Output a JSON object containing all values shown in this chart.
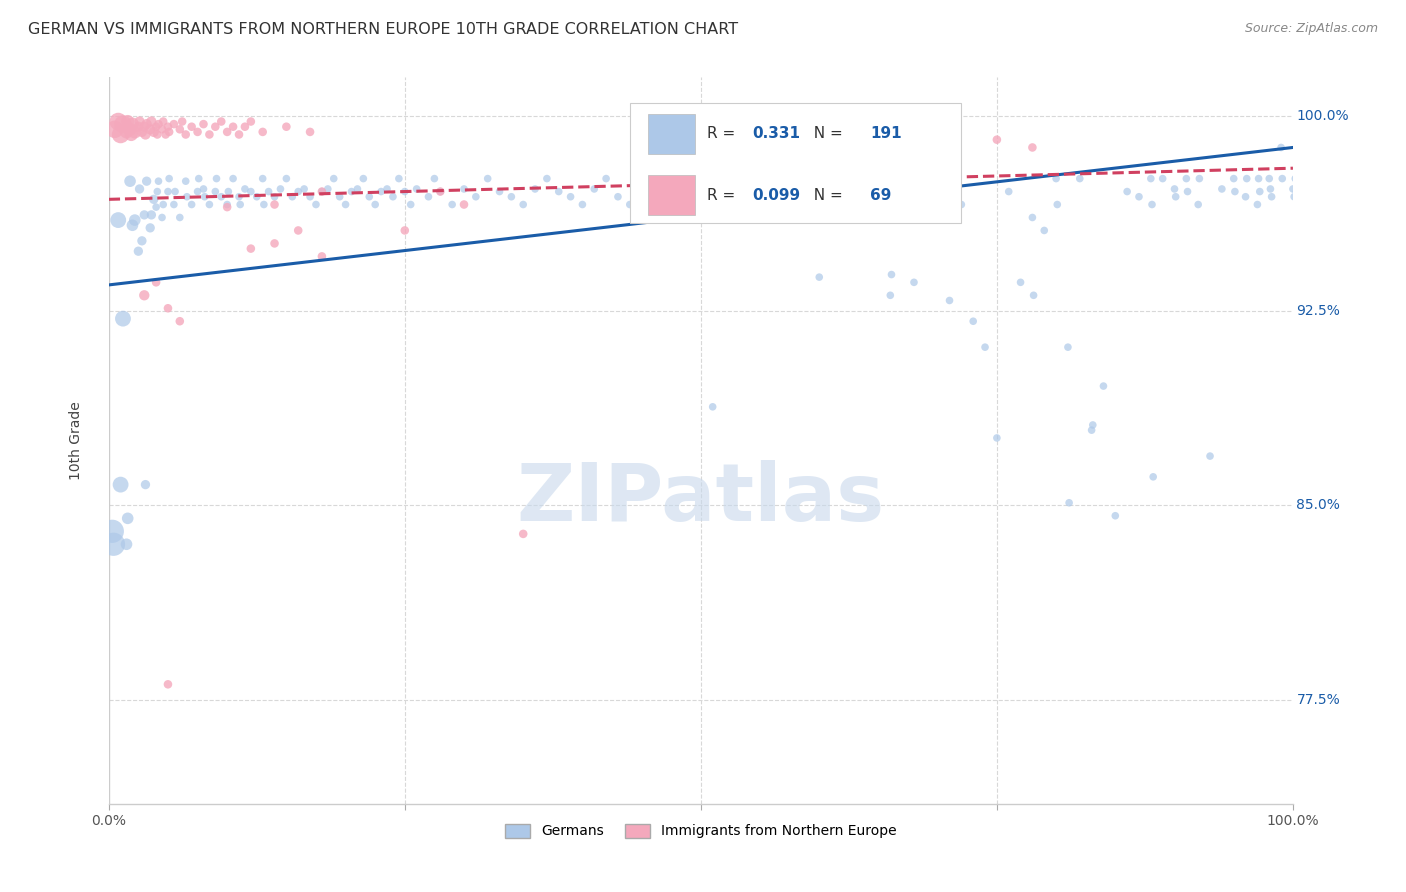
{
  "title": "GERMAN VS IMMIGRANTS FROM NORTHERN EUROPE 10TH GRADE CORRELATION CHART",
  "source": "Source: ZipAtlas.com",
  "ylabel": "10th Grade",
  "yticks": [
    0.775,
    0.85,
    0.925,
    1.0
  ],
  "ytick_labels": [
    "77.5%",
    "85.0%",
    "92.5%",
    "100.0%"
  ],
  "xlim": [
    0.0,
    1.0
  ],
  "ylim": [
    0.735,
    1.015
  ],
  "blue_R": "0.331",
  "blue_N": "191",
  "pink_R": "0.099",
  "pink_N": "69",
  "blue_color": "#adc8e8",
  "pink_color": "#f4a8bc",
  "blue_line_color": "#1a5ca8",
  "pink_line_color": "#d04060",
  "legend_label_blue": "Germans",
  "legend_label_pink": "Immigrants from Northern Europe",
  "background_color": "#ffffff",
  "grid_color": "#d8d8d8",
  "title_fontsize": 11.5,
  "source_fontsize": 9,
  "axis_label_fontsize": 10,
  "tick_fontsize": 10,
  "legend_fontsize": 11,
  "blue_line_start_x": 0.0,
  "blue_line_start_y": 0.935,
  "blue_line_end_x": 1.0,
  "blue_line_end_y": 0.988,
  "pink_line_start_x": 0.0,
  "pink_line_start_y": 0.968,
  "pink_line_end_x": 1.0,
  "pink_line_end_y": 0.98,
  "watermark_text": "ZIPatlas",
  "watermark_color": "#c8d8ec",
  "blue_dots": [
    [
      0.003,
      0.84
    ],
    [
      0.004,
      0.835
    ],
    [
      0.008,
      0.96
    ],
    [
      0.01,
      0.858
    ],
    [
      0.012,
      0.922
    ],
    [
      0.015,
      0.835
    ],
    [
      0.016,
      0.845
    ],
    [
      0.018,
      0.975
    ],
    [
      0.02,
      0.958
    ],
    [
      0.022,
      0.96
    ],
    [
      0.025,
      0.948
    ],
    [
      0.026,
      0.972
    ],
    [
      0.028,
      0.952
    ],
    [
      0.03,
      0.962
    ],
    [
      0.031,
      0.858
    ],
    [
      0.032,
      0.975
    ],
    [
      0.035,
      0.957
    ],
    [
      0.036,
      0.962
    ],
    [
      0.038,
      0.968
    ],
    [
      0.04,
      0.965
    ],
    [
      0.041,
      0.971
    ],
    [
      0.042,
      0.975
    ],
    [
      0.045,
      0.961
    ],
    [
      0.046,
      0.966
    ],
    [
      0.05,
      0.971
    ],
    [
      0.051,
      0.976
    ],
    [
      0.055,
      0.966
    ],
    [
      0.056,
      0.971
    ],
    [
      0.06,
      0.961
    ],
    [
      0.065,
      0.975
    ],
    [
      0.066,
      0.969
    ],
    [
      0.07,
      0.966
    ],
    [
      0.075,
      0.971
    ],
    [
      0.076,
      0.976
    ],
    [
      0.08,
      0.972
    ],
    [
      0.081,
      0.969
    ],
    [
      0.085,
      0.966
    ],
    [
      0.09,
      0.971
    ],
    [
      0.091,
      0.976
    ],
    [
      0.095,
      0.969
    ],
    [
      0.1,
      0.966
    ],
    [
      0.101,
      0.971
    ],
    [
      0.105,
      0.976
    ],
    [
      0.11,
      0.969
    ],
    [
      0.111,
      0.966
    ],
    [
      0.115,
      0.972
    ],
    [
      0.12,
      0.971
    ],
    [
      0.125,
      0.969
    ],
    [
      0.13,
      0.976
    ],
    [
      0.131,
      0.966
    ],
    [
      0.135,
      0.971
    ],
    [
      0.14,
      0.969
    ],
    [
      0.145,
      0.972
    ],
    [
      0.15,
      0.976
    ],
    [
      0.155,
      0.969
    ],
    [
      0.16,
      0.971
    ],
    [
      0.165,
      0.972
    ],
    [
      0.17,
      0.969
    ],
    [
      0.175,
      0.966
    ],
    [
      0.18,
      0.971
    ],
    [
      0.185,
      0.972
    ],
    [
      0.19,
      0.976
    ],
    [
      0.195,
      0.969
    ],
    [
      0.2,
      0.966
    ],
    [
      0.205,
      0.971
    ],
    [
      0.21,
      0.972
    ],
    [
      0.215,
      0.976
    ],
    [
      0.22,
      0.969
    ],
    [
      0.225,
      0.966
    ],
    [
      0.23,
      0.971
    ],
    [
      0.235,
      0.972
    ],
    [
      0.24,
      0.969
    ],
    [
      0.245,
      0.976
    ],
    [
      0.25,
      0.971
    ],
    [
      0.255,
      0.966
    ],
    [
      0.26,
      0.972
    ],
    [
      0.27,
      0.969
    ],
    [
      0.275,
      0.976
    ],
    [
      0.28,
      0.971
    ],
    [
      0.29,
      0.966
    ],
    [
      0.3,
      0.972
    ],
    [
      0.31,
      0.969
    ],
    [
      0.32,
      0.976
    ],
    [
      0.33,
      0.971
    ],
    [
      0.34,
      0.969
    ],
    [
      0.35,
      0.966
    ],
    [
      0.36,
      0.972
    ],
    [
      0.37,
      0.976
    ],
    [
      0.38,
      0.971
    ],
    [
      0.39,
      0.969
    ],
    [
      0.4,
      0.966
    ],
    [
      0.41,
      0.972
    ],
    [
      0.42,
      0.976
    ],
    [
      0.43,
      0.969
    ],
    [
      0.44,
      0.966
    ],
    [
      0.45,
      0.971
    ],
    [
      0.46,
      0.972
    ],
    [
      0.47,
      0.976
    ],
    [
      0.48,
      0.969
    ],
    [
      0.49,
      0.971
    ],
    [
      0.5,
      0.966
    ],
    [
      0.51,
      0.888
    ],
    [
      0.52,
      0.972
    ],
    [
      0.53,
      0.969
    ],
    [
      0.54,
      0.976
    ],
    [
      0.55,
      0.966
    ],
    [
      0.56,
      0.971
    ],
    [
      0.57,
      0.969
    ],
    [
      0.58,
      0.972
    ],
    [
      0.59,
      0.976
    ],
    [
      0.6,
      0.938
    ],
    [
      0.61,
      0.966
    ],
    [
      0.62,
      0.971
    ],
    [
      0.63,
      0.969
    ],
    [
      0.64,
      0.976
    ],
    [
      0.65,
      0.971
    ],
    [
      0.66,
      0.931
    ],
    [
      0.661,
      0.939
    ],
    [
      0.67,
      0.966
    ],
    [
      0.68,
      0.936
    ],
    [
      0.681,
      0.969
    ],
    [
      0.69,
      0.972
    ],
    [
      0.7,
      0.976
    ],
    [
      0.71,
      0.929
    ],
    [
      0.72,
      0.966
    ],
    [
      0.73,
      0.921
    ],
    [
      0.74,
      0.911
    ],
    [
      0.75,
      0.876
    ],
    [
      0.76,
      0.971
    ],
    [
      0.77,
      0.936
    ],
    [
      0.78,
      0.961
    ],
    [
      0.781,
      0.931
    ],
    [
      0.79,
      0.956
    ],
    [
      0.8,
      0.976
    ],
    [
      0.801,
      0.966
    ],
    [
      0.81,
      0.911
    ],
    [
      0.811,
      0.851
    ],
    [
      0.82,
      0.976
    ],
    [
      0.83,
      0.879
    ],
    [
      0.831,
      0.881
    ],
    [
      0.84,
      0.896
    ],
    [
      0.85,
      0.846
    ],
    [
      0.86,
      0.971
    ],
    [
      0.87,
      0.969
    ],
    [
      0.88,
      0.976
    ],
    [
      0.881,
      0.966
    ],
    [
      0.882,
      0.861
    ],
    [
      0.89,
      0.976
    ],
    [
      0.9,
      0.972
    ],
    [
      0.901,
      0.969
    ],
    [
      0.91,
      0.976
    ],
    [
      0.911,
      0.971
    ],
    [
      0.92,
      0.966
    ],
    [
      0.921,
      0.976
    ],
    [
      0.93,
      0.869
    ],
    [
      0.94,
      0.972
    ],
    [
      0.95,
      0.976
    ],
    [
      0.951,
      0.971
    ],
    [
      0.96,
      0.969
    ],
    [
      0.961,
      0.976
    ],
    [
      0.97,
      0.966
    ],
    [
      0.971,
      0.976
    ],
    [
      0.972,
      0.971
    ],
    [
      0.98,
      0.976
    ],
    [
      0.981,
      0.972
    ],
    [
      0.982,
      0.969
    ],
    [
      0.99,
      0.988
    ],
    [
      0.991,
      0.976
    ],
    [
      1.0,
      0.972
    ],
    [
      1.001,
      0.969
    ],
    [
      1.002,
      0.976
    ],
    [
      1.003,
      0.971
    ],
    [
      1.004,
      0.966
    ],
    [
      1.005,
      0.976
    ]
  ],
  "pink_dots": [
    [
      0.005,
      0.995
    ],
    [
      0.008,
      0.998
    ],
    [
      0.01,
      0.993
    ],
    [
      0.012,
      0.997
    ],
    [
      0.015,
      0.994
    ],
    [
      0.016,
      0.998
    ],
    [
      0.018,
      0.995
    ],
    [
      0.019,
      0.993
    ],
    [
      0.02,
      0.997
    ],
    [
      0.022,
      0.994
    ],
    [
      0.025,
      0.996
    ],
    [
      0.026,
      0.998
    ],
    [
      0.028,
      0.994
    ],
    [
      0.03,
      0.996
    ],
    [
      0.031,
      0.993
    ],
    [
      0.032,
      0.997
    ],
    [
      0.035,
      0.995
    ],
    [
      0.036,
      0.998
    ],
    [
      0.038,
      0.994
    ],
    [
      0.04,
      0.996
    ],
    [
      0.041,
      0.993
    ],
    [
      0.042,
      0.997
    ],
    [
      0.045,
      0.995
    ],
    [
      0.046,
      0.998
    ],
    [
      0.048,
      0.993
    ],
    [
      0.05,
      0.996
    ],
    [
      0.051,
      0.994
    ],
    [
      0.055,
      0.997
    ],
    [
      0.06,
      0.995
    ],
    [
      0.062,
      0.998
    ],
    [
      0.065,
      0.993
    ],
    [
      0.07,
      0.996
    ],
    [
      0.075,
      0.994
    ],
    [
      0.08,
      0.997
    ],
    [
      0.085,
      0.993
    ],
    [
      0.09,
      0.996
    ],
    [
      0.095,
      0.998
    ],
    [
      0.1,
      0.965
    ],
    [
      0.1,
      0.994
    ],
    [
      0.105,
      0.996
    ],
    [
      0.11,
      0.993
    ],
    [
      0.115,
      0.996
    ],
    [
      0.12,
      0.998
    ],
    [
      0.13,
      0.994
    ],
    [
      0.14,
      0.966
    ],
    [
      0.15,
      0.996
    ],
    [
      0.16,
      0.956
    ],
    [
      0.17,
      0.994
    ],
    [
      0.18,
      0.971
    ],
    [
      0.25,
      0.956
    ],
    [
      0.28,
      0.971
    ],
    [
      0.3,
      0.966
    ],
    [
      0.35,
      0.839
    ],
    [
      0.6,
      0.961
    ],
    [
      0.62,
      0.985
    ],
    [
      0.65,
      0.991
    ],
    [
      0.68,
      0.991
    ],
    [
      0.7,
      0.992
    ],
    [
      0.75,
      0.991
    ],
    [
      0.78,
      0.988
    ],
    [
      0.12,
      0.949
    ],
    [
      0.14,
      0.951
    ],
    [
      0.18,
      0.946
    ],
    [
      0.05,
      0.926
    ],
    [
      0.06,
      0.921
    ],
    [
      0.04,
      0.936
    ],
    [
      0.03,
      0.931
    ],
    [
      0.05,
      0.781
    ]
  ]
}
